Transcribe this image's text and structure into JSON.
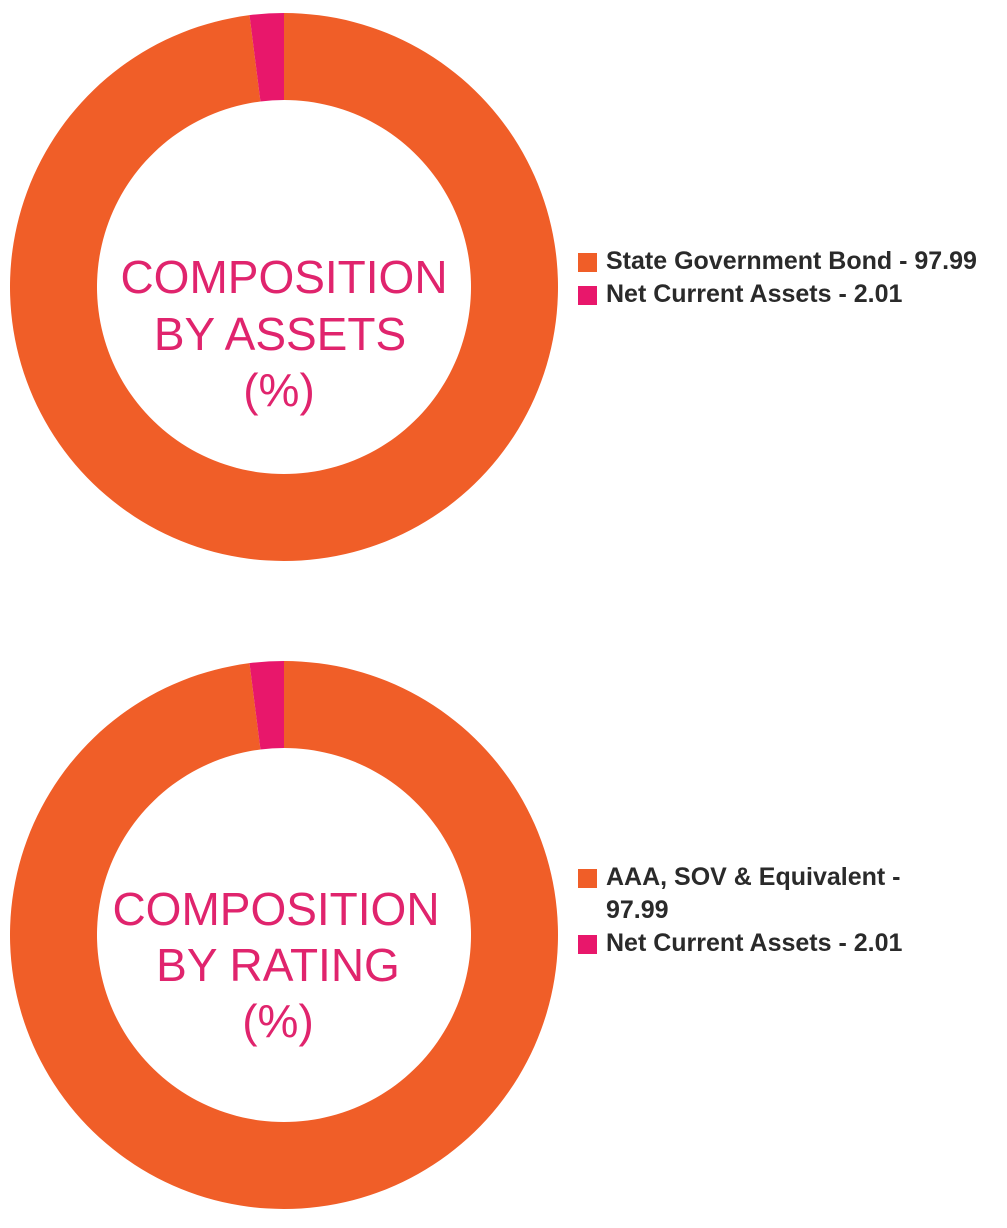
{
  "colors": {
    "orange": "#f05e28",
    "pink": "#e8176b",
    "center_text": "#e0246d",
    "legend_text": "#2a2a2a"
  },
  "chart_data": [
    {
      "type": "pie",
      "center_text": [
        "COMPOSITION",
        "BY ASSETS",
        "(%)"
      ],
      "slices": [
        {
          "label": "State Government Bond - 97.99",
          "value": 97.99,
          "color": "#f05e28"
        },
        {
          "label": "Net Current Assets - 2.01",
          "value": 2.01,
          "color": "#e8176b"
        }
      ],
      "legend_position": "right"
    },
    {
      "type": "pie",
      "center_text": [
        "COMPOSITION",
        "BY RATING",
        "(%)"
      ],
      "slices": [
        {
          "label": "AAA, SOV & Equivalent - 97.99",
          "value": 97.99,
          "color": "#f05e28"
        },
        {
          "label": "Net Current Assets - 2.01",
          "value": 2.01,
          "color": "#e8176b"
        }
      ],
      "legend_position": "right"
    }
  ]
}
